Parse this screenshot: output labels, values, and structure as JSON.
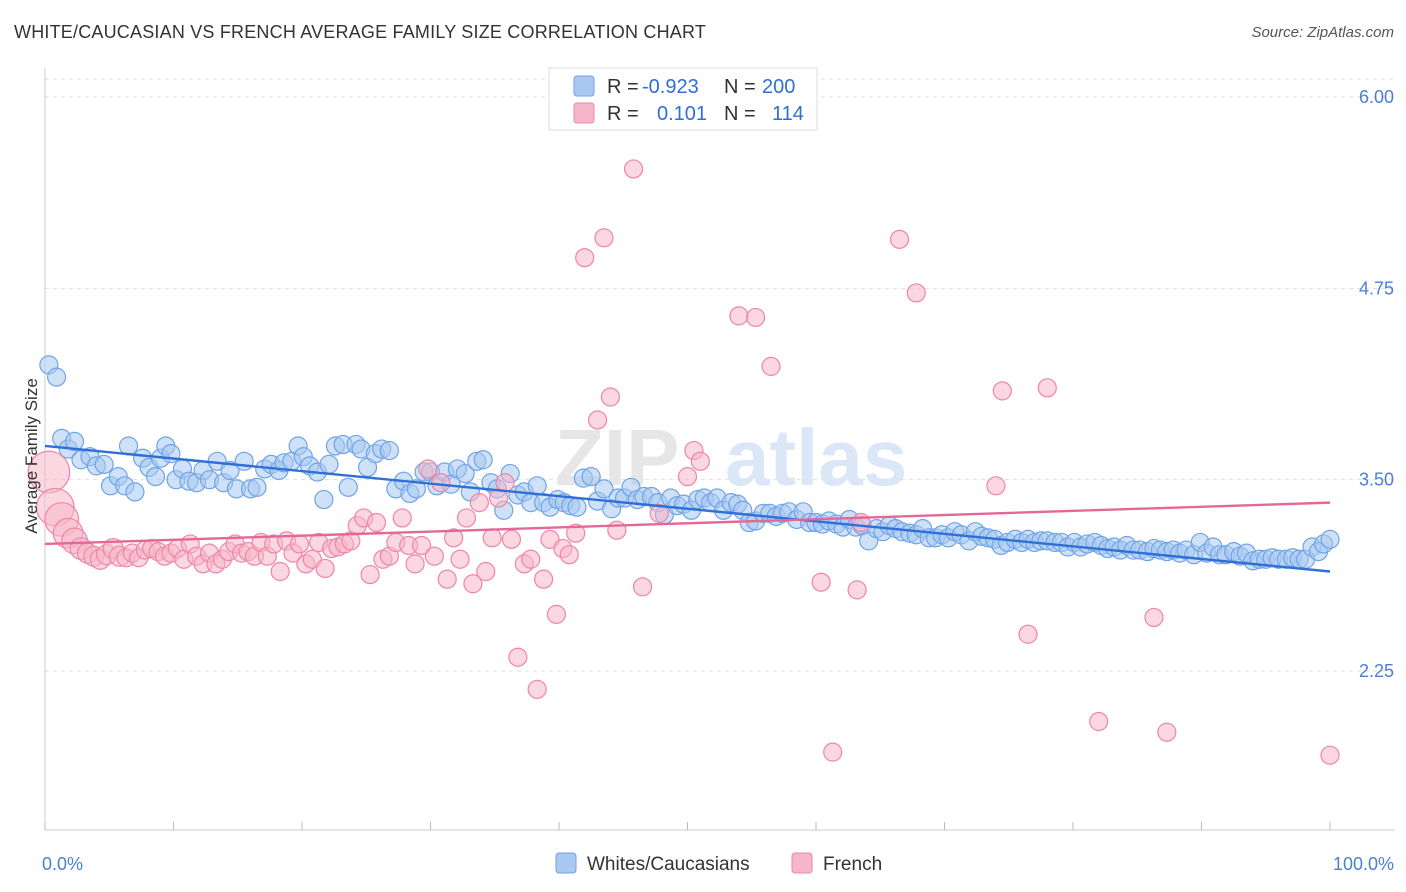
{
  "title": "WHITE/CAUCASIAN VS FRENCH AVERAGE FAMILY SIZE CORRELATION CHART",
  "source": "Source: ZipAtlas.com",
  "watermark": {
    "zip": "ZIP",
    "atlas": "atlas"
  },
  "legend": {
    "rows": [
      {
        "r_label": "R =",
        "r_value": "-0.923",
        "n_label": "N =",
        "n_value": "200",
        "color": "#a8c8f0"
      },
      {
        "r_label": "R =",
        "r_value": "0.101",
        "n_label": "N =",
        "n_value": "114",
        "color": "#f6b6c9"
      }
    ]
  },
  "bottom_legend": [
    {
      "label": "Whites/Caucasians",
      "color": "#a8c8f0"
    },
    {
      "label": "French",
      "color": "#f6b6c9"
    }
  ],
  "chart_data": {
    "type": "scatter",
    "ylabel": "Average Family Size",
    "xlim": [
      0,
      100
    ],
    "ylim": [
      1.0,
      6.2
    ],
    "x_tick_labels": [
      "0.0%",
      "100.0%"
    ],
    "y_ticks": [
      2.25,
      3.5,
      4.75,
      6.0
    ],
    "y_tick_labels": [
      "2.25",
      "3.50",
      "4.75",
      "6.00"
    ],
    "grid": "horizontal dashed",
    "legend_position": "top-center",
    "series": [
      {
        "name": "Whites/Caucasians",
        "color": "#6fa3e8",
        "fill": "#a8c8f0",
        "trend": {
          "x": [
            0,
            100
          ],
          "y": [
            3.72,
            2.9
          ]
        },
        "points": [
          [
            0.3,
            4.25
          ],
          [
            0.9,
            4.17
          ],
          [
            1.3,
            3.77
          ],
          [
            1.8,
            3.7
          ],
          [
            2.3,
            3.75
          ],
          [
            2.8,
            3.63
          ],
          [
            3.5,
            3.65
          ],
          [
            4,
            3.59
          ],
          [
            4.6,
            3.6
          ],
          [
            5.1,
            3.46
          ],
          [
            5.7,
            3.52
          ],
          [
            6.2,
            3.46
          ],
          [
            6.5,
            3.72
          ],
          [
            7,
            3.42
          ],
          [
            7.6,
            3.64
          ],
          [
            8.1,
            3.58
          ],
          [
            8.6,
            3.52
          ],
          [
            9,
            3.64
          ],
          [
            9.4,
            3.72
          ],
          [
            9.8,
            3.67
          ],
          [
            10.2,
            3.5
          ],
          [
            10.7,
            3.57
          ],
          [
            11.2,
            3.49
          ],
          [
            11.8,
            3.48
          ],
          [
            12.3,
            3.56
          ],
          [
            12.8,
            3.5
          ],
          [
            13.4,
            3.62
          ],
          [
            13.9,
            3.48
          ],
          [
            14.4,
            3.56
          ],
          [
            14.9,
            3.44
          ],
          [
            15.5,
            3.62
          ],
          [
            16,
            3.44
          ],
          [
            16.5,
            3.45
          ],
          [
            17.1,
            3.57
          ],
          [
            17.6,
            3.6
          ],
          [
            18.2,
            3.56
          ],
          [
            18.6,
            3.61
          ],
          [
            19.2,
            3.62
          ],
          [
            19.7,
            3.72
          ],
          [
            20.1,
            3.65
          ],
          [
            20.6,
            3.59
          ],
          [
            21.2,
            3.55
          ],
          [
            21.7,
            3.37
          ],
          [
            22.1,
            3.6
          ],
          [
            22.6,
            3.72
          ],
          [
            23.2,
            3.73
          ],
          [
            23.6,
            3.45
          ],
          [
            24.2,
            3.73
          ],
          [
            24.6,
            3.7
          ],
          [
            25.1,
            3.58
          ],
          [
            25.7,
            3.67
          ],
          [
            26.2,
            3.7
          ],
          [
            26.8,
            3.69
          ],
          [
            27.3,
            3.44
          ],
          [
            27.9,
            3.49
          ],
          [
            28.4,
            3.41
          ],
          [
            28.9,
            3.44
          ],
          [
            29.5,
            3.55
          ],
          [
            30,
            3.55
          ],
          [
            30.5,
            3.46
          ],
          [
            31.1,
            3.55
          ],
          [
            31.6,
            3.47
          ],
          [
            32.1,
            3.57
          ],
          [
            32.7,
            3.54
          ],
          [
            33.1,
            3.42
          ],
          [
            33.6,
            3.62
          ],
          [
            34.1,
            3.63
          ],
          [
            34.7,
            3.48
          ],
          [
            35.2,
            3.44
          ],
          [
            35.7,
            3.3
          ],
          [
            36.2,
            3.54
          ],
          [
            36.8,
            3.4
          ],
          [
            37.3,
            3.42
          ],
          [
            37.8,
            3.35
          ],
          [
            38.3,
            3.46
          ],
          [
            38.8,
            3.35
          ],
          [
            39.3,
            3.32
          ],
          [
            39.9,
            3.37
          ],
          [
            40.4,
            3.35
          ],
          [
            40.9,
            3.33
          ],
          [
            41.4,
            3.32
          ],
          [
            41.9,
            3.51
          ],
          [
            42.5,
            3.52
          ],
          [
            43,
            3.36
          ],
          [
            43.5,
            3.44
          ],
          [
            44.1,
            3.31
          ],
          [
            44.6,
            3.38
          ],
          [
            45.1,
            3.38
          ],
          [
            45.6,
            3.45
          ],
          [
            46.1,
            3.37
          ],
          [
            46.6,
            3.39
          ],
          [
            47.2,
            3.39
          ],
          [
            47.7,
            3.35
          ],
          [
            48.2,
            3.27
          ],
          [
            48.7,
            3.38
          ],
          [
            49.2,
            3.33
          ],
          [
            49.7,
            3.34
          ],
          [
            50.3,
            3.3
          ],
          [
            50.8,
            3.37
          ],
          [
            51.3,
            3.38
          ],
          [
            51.8,
            3.35
          ],
          [
            52.3,
            3.38
          ],
          [
            52.8,
            3.3
          ],
          [
            53.4,
            3.35
          ],
          [
            53.9,
            3.34
          ],
          [
            54.3,
            3.3
          ],
          [
            54.8,
            3.22
          ],
          [
            55.3,
            3.23
          ],
          [
            55.9,
            3.28
          ],
          [
            56.4,
            3.28
          ],
          [
            56.9,
            3.26
          ],
          [
            57.4,
            3.28
          ],
          [
            57.9,
            3.29
          ],
          [
            58.5,
            3.24
          ],
          [
            59,
            3.29
          ],
          [
            59.5,
            3.22
          ],
          [
            60,
            3.22
          ],
          [
            60.5,
            3.21
          ],
          [
            61,
            3.23
          ],
          [
            61.6,
            3.21
          ],
          [
            62.1,
            3.19
          ],
          [
            62.6,
            3.24
          ],
          [
            63.1,
            3.19
          ],
          [
            63.6,
            3.2
          ],
          [
            64.1,
            3.1
          ],
          [
            64.7,
            3.18
          ],
          [
            65.2,
            3.16
          ],
          [
            65.7,
            3.2
          ],
          [
            66.2,
            3.18
          ],
          [
            66.7,
            3.16
          ],
          [
            67.3,
            3.15
          ],
          [
            67.8,
            3.14
          ],
          [
            68.3,
            3.18
          ],
          [
            68.8,
            3.12
          ],
          [
            69.3,
            3.12
          ],
          [
            69.8,
            3.14
          ],
          [
            70.3,
            3.12
          ],
          [
            70.8,
            3.16
          ],
          [
            71.3,
            3.14
          ],
          [
            71.9,
            3.1
          ],
          [
            72.4,
            3.16
          ],
          [
            72.9,
            3.13
          ],
          [
            73.4,
            3.12
          ],
          [
            73.9,
            3.11
          ],
          [
            74.4,
            3.07
          ],
          [
            74.9,
            3.09
          ],
          [
            75.5,
            3.11
          ],
          [
            76,
            3.09
          ],
          [
            76.5,
            3.11
          ],
          [
            77,
            3.09
          ],
          [
            77.5,
            3.1
          ],
          [
            78,
            3.1
          ],
          [
            78.6,
            3.09
          ],
          [
            79.1,
            3.09
          ],
          [
            79.6,
            3.06
          ],
          [
            80.1,
            3.09
          ],
          [
            80.6,
            3.06
          ],
          [
            81.1,
            3.08
          ],
          [
            81.7,
            3.09
          ],
          [
            82.2,
            3.07
          ],
          [
            82.7,
            3.05
          ],
          [
            83.2,
            3.06
          ],
          [
            83.7,
            3.04
          ],
          [
            84.2,
            3.07
          ],
          [
            84.7,
            3.04
          ],
          [
            85.2,
            3.04
          ],
          [
            85.8,
            3.03
          ],
          [
            86.3,
            3.05
          ],
          [
            86.8,
            3.04
          ],
          [
            87.3,
            3.03
          ],
          [
            87.8,
            3.04
          ],
          [
            88.3,
            3.02
          ],
          [
            88.8,
            3.04
          ],
          [
            89.4,
            3.01
          ],
          [
            89.9,
            3.09
          ],
          [
            90.4,
            3.02
          ],
          [
            90.9,
            3.06
          ],
          [
            91.4,
            3.01
          ],
          [
            91.9,
            3.01
          ],
          [
            92.5,
            3.03
          ],
          [
            93,
            3.0
          ],
          [
            93.5,
            3.02
          ],
          [
            94,
            2.97
          ],
          [
            94.5,
            2.98
          ],
          [
            95,
            2.98
          ],
          [
            95.5,
            2.99
          ],
          [
            96,
            2.98
          ],
          [
            96.6,
            2.98
          ],
          [
            97.1,
            2.99
          ],
          [
            97.6,
            2.98
          ],
          [
            98.1,
            2.98
          ],
          [
            98.6,
            3.06
          ],
          [
            99.1,
            3.03
          ],
          [
            99.5,
            3.08
          ],
          [
            100,
            3.11
          ]
        ]
      },
      {
        "name": "French",
        "color": "#ef85a8",
        "fill": "#f6b6c9",
        "trend": {
          "x": [
            0,
            100
          ],
          "y": [
            3.08,
            3.35
          ]
        },
        "points": [
          [
            0.3,
            3.55
          ],
          [
            0.8,
            3.32
          ],
          [
            1.3,
            3.24
          ],
          [
            1.8,
            3.15
          ],
          [
            2.3,
            3.1
          ],
          [
            2.8,
            3.05
          ],
          [
            3.3,
            3.02
          ],
          [
            3.8,
            3.0
          ],
          [
            4.3,
            2.98
          ],
          [
            4.8,
            3.01
          ],
          [
            5.3,
            3.05
          ],
          [
            5.8,
            3.0
          ],
          [
            6.3,
            2.99
          ],
          [
            6.8,
            3.02
          ],
          [
            7.3,
            2.99
          ],
          [
            7.8,
            3.04
          ],
          [
            8.3,
            3.05
          ],
          [
            8.8,
            3.03
          ],
          [
            9.3,
            3.0
          ],
          [
            9.8,
            3.02
          ],
          [
            10.3,
            3.05
          ],
          [
            10.8,
            2.98
          ],
          [
            11.3,
            3.08
          ],
          [
            11.8,
            3.0
          ],
          [
            12.3,
            2.95
          ],
          [
            12.8,
            3.02
          ],
          [
            13.3,
            2.95
          ],
          [
            13.8,
            2.98
          ],
          [
            14.3,
            3.03
          ],
          [
            14.8,
            3.08
          ],
          [
            15.3,
            3.02
          ],
          [
            15.8,
            3.03
          ],
          [
            16.3,
            3.0
          ],
          [
            16.8,
            3.09
          ],
          [
            17.3,
            3.0
          ],
          [
            17.8,
            3.08
          ],
          [
            18.3,
            2.9
          ],
          [
            18.8,
            3.1
          ],
          [
            19.3,
            3.02
          ],
          [
            19.8,
            3.08
          ],
          [
            20.3,
            2.95
          ],
          [
            20.8,
            2.98
          ],
          [
            21.3,
            3.09
          ],
          [
            21.8,
            2.92
          ],
          [
            22.3,
            3.05
          ],
          [
            22.8,
            3.06
          ],
          [
            23.3,
            3.08
          ],
          [
            23.8,
            3.1
          ],
          [
            24.3,
            3.2
          ],
          [
            24.8,
            3.25
          ],
          [
            25.3,
            2.88
          ],
          [
            25.8,
            3.22
          ],
          [
            26.3,
            2.98
          ],
          [
            26.8,
            3.0
          ],
          [
            27.3,
            3.09
          ],
          [
            27.8,
            3.25
          ],
          [
            28.3,
            3.07
          ],
          [
            28.8,
            2.95
          ],
          [
            29.3,
            3.07
          ],
          [
            29.8,
            3.57
          ],
          [
            30.3,
            3.0
          ],
          [
            30.8,
            3.48
          ],
          [
            31.3,
            2.85
          ],
          [
            31.8,
            3.12
          ],
          [
            32.3,
            2.98
          ],
          [
            32.8,
            3.25
          ],
          [
            33.3,
            2.82
          ],
          [
            33.8,
            3.35
          ],
          [
            34.3,
            2.9
          ],
          [
            34.8,
            3.12
          ],
          [
            35.3,
            3.38
          ],
          [
            35.8,
            3.48
          ],
          [
            36.3,
            3.11
          ],
          [
            36.8,
            2.34
          ],
          [
            37.3,
            2.95
          ],
          [
            37.8,
            2.98
          ],
          [
            38.3,
            2.13
          ],
          [
            38.8,
            2.85
          ],
          [
            39.3,
            3.11
          ],
          [
            39.8,
            2.62
          ],
          [
            40.3,
            3.05
          ],
          [
            40.8,
            3.01
          ],
          [
            41.3,
            3.15
          ],
          [
            42,
            4.95
          ],
          [
            43,
            3.89
          ],
          [
            43.5,
            5.08
          ],
          [
            44,
            4.04
          ],
          [
            44.5,
            3.17
          ],
          [
            45.8,
            5.53
          ],
          [
            46.5,
            2.8
          ],
          [
            47.8,
            3.28
          ],
          [
            50,
            3.52
          ],
          [
            50.5,
            3.69
          ],
          [
            51,
            3.62
          ],
          [
            54,
            4.57
          ],
          [
            55.3,
            4.56
          ],
          [
            56.5,
            4.24
          ],
          [
            60.4,
            2.83
          ],
          [
            61.3,
            1.72
          ],
          [
            63.2,
            2.78
          ],
          [
            63.5,
            3.22
          ],
          [
            66.5,
            5.07
          ],
          [
            67.8,
            4.72
          ],
          [
            74,
            3.46
          ],
          [
            74.5,
            4.08
          ],
          [
            76.5,
            2.49
          ],
          [
            78,
            4.1
          ],
          [
            82,
            1.92
          ],
          [
            86.3,
            2.6
          ],
          [
            87.3,
            1.85
          ],
          [
            100,
            1.7
          ]
        ]
      }
    ]
  }
}
